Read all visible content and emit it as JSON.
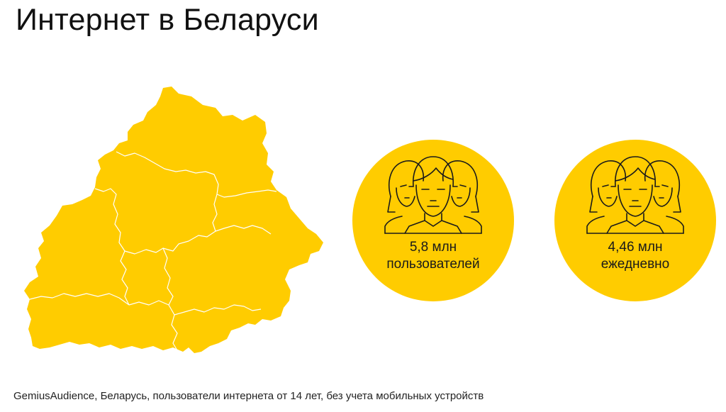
{
  "title": "Интернет в Беларуси",
  "colors": {
    "accent": "#FFCC00",
    "background": "#FFFFFF",
    "text": "#111111"
  },
  "map": {
    "icon": "belarus-regions-map"
  },
  "stats": [
    {
      "icon": "people-group-icon",
      "value": "5,8 млн",
      "label": "пользователей"
    },
    {
      "icon": "people-group-icon",
      "value": "4,46 млн",
      "label": "ежедневно"
    }
  ],
  "source": "GemiusAudience, Беларусь, пользователи интернета от 14 лет, без учета мобильных устройств"
}
